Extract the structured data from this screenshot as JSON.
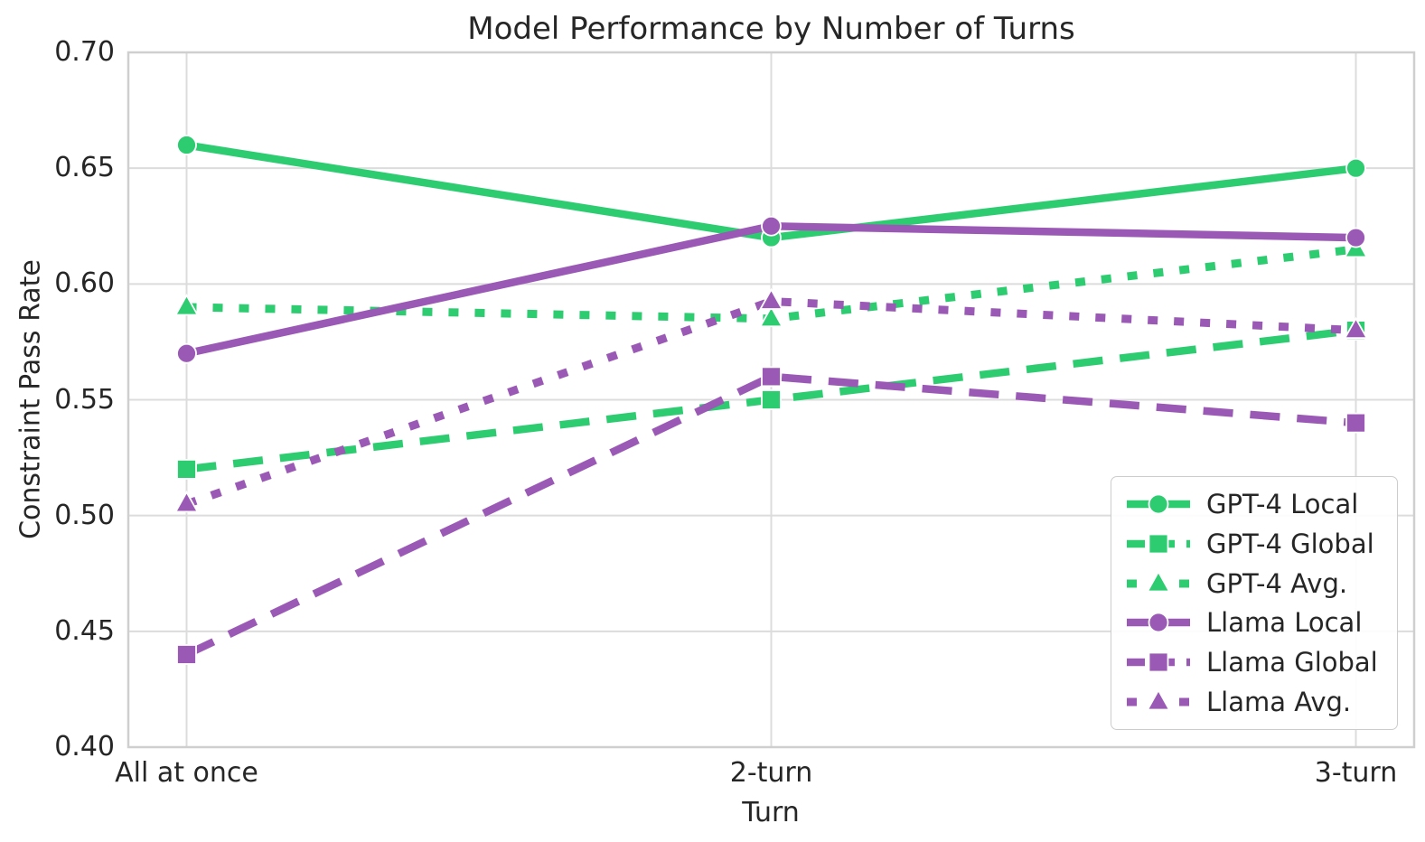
{
  "chart_data": {
    "type": "line",
    "title": "Model Performance by Number of Turns",
    "xlabel": "Turn",
    "ylabel": "Constraint Pass Rate",
    "categories": [
      "All at once",
      "2-turn",
      "3-turn"
    ],
    "ylim": [
      0.4,
      0.7
    ],
    "ytick_labels": [
      "0.40",
      "0.45",
      "0.50",
      "0.55",
      "0.60",
      "0.65",
      "0.70"
    ],
    "grid": true,
    "legend_position": "lower right",
    "background_color": "#ffffff",
    "grid_color": "#dcdcdc",
    "spine_color": "#cfcfcf",
    "text_color": "#262626",
    "series": [
      {
        "name": "GPT-4 Local",
        "color": "#2ecc71",
        "style": "solid",
        "marker": "circle",
        "values": [
          0.66,
          0.62,
          0.65
        ]
      },
      {
        "name": "GPT-4 Global",
        "color": "#2ecc71",
        "style": "dashed",
        "marker": "square",
        "values": [
          0.52,
          0.55,
          0.58
        ]
      },
      {
        "name": "GPT-4 Avg.",
        "color": "#2ecc71",
        "style": "dotted",
        "marker": "triangle",
        "values": [
          0.59,
          0.585,
          0.615
        ]
      },
      {
        "name": "Llama Local",
        "color": "#9b59b6",
        "style": "solid",
        "marker": "circle",
        "values": [
          0.57,
          0.625,
          0.62
        ]
      },
      {
        "name": "Llama Global",
        "color": "#9b59b6",
        "style": "dashed",
        "marker": "square",
        "values": [
          0.44,
          0.56,
          0.54
        ]
      },
      {
        "name": "Llama Avg.",
        "color": "#9b59b6",
        "style": "dotted",
        "marker": "triangle",
        "values": [
          0.505,
          0.5925,
          0.58
        ]
      }
    ]
  }
}
